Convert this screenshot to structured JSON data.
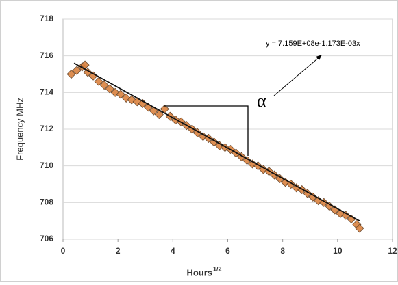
{
  "chart_data": {
    "type": "scatter",
    "xlabel": "Hours",
    "xlabel_superscript": "1/2",
    "ylabel": "Frequency MHz",
    "annotations": [
      "y = 7.159E+08e-1.173E-03x",
      "α"
    ],
    "xlim": [
      0,
      12
    ],
    "xticks": [
      0,
      2,
      4,
      6,
      8,
      10,
      12
    ],
    "ylim": [
      706,
      718
    ],
    "yticks": [
      706,
      708,
      710,
      712,
      714,
      716,
      718
    ],
    "grid": true,
    "series": [
      {
        "color": "#d9823f",
        "x": [
          0.3,
          0.5,
          0.7,
          0.8,
          0.9,
          1.1,
          1.3,
          1.5,
          1.7,
          1.9,
          2.1,
          2.3,
          2.5,
          2.7,
          2.9,
          3.1,
          3.3,
          3.5,
          3.7,
          3.9,
          4.1,
          4.3,
          4.5,
          4.7,
          4.9,
          5.1,
          5.3,
          5.5,
          5.7,
          5.9,
          6.1,
          6.3,
          6.5,
          6.7,
          6.9,
          7.1,
          7.3,
          7.5,
          7.7,
          7.9,
          8.1,
          8.3,
          8.5,
          8.7,
          8.9,
          9.1,
          9.3,
          9.5,
          9.7,
          9.9,
          10.1,
          10.3,
          10.5,
          10.7,
          10.8
        ],
        "values": [
          715.0,
          715.2,
          715.4,
          715.5,
          715.1,
          714.9,
          714.6,
          714.4,
          714.2,
          714.0,
          713.9,
          713.7,
          713.6,
          713.5,
          713.4,
          713.2,
          713.0,
          712.8,
          713.1,
          712.7,
          712.5,
          712.4,
          712.2,
          712.0,
          711.8,
          711.6,
          711.5,
          711.3,
          711.1,
          711.0,
          710.9,
          710.7,
          710.5,
          710.3,
          710.1,
          710.0,
          709.8,
          709.7,
          709.5,
          709.3,
          709.1,
          709.0,
          708.8,
          708.7,
          708.5,
          708.3,
          708.1,
          708.0,
          707.8,
          707.6,
          707.4,
          707.3,
          707.1,
          706.8,
          706.6
        ]
      },
      {
        "type": "line",
        "color": "#111111",
        "x": [
          0.4,
          10.8
        ],
        "values": [
          715.6,
          707.0
        ]
      }
    ]
  }
}
